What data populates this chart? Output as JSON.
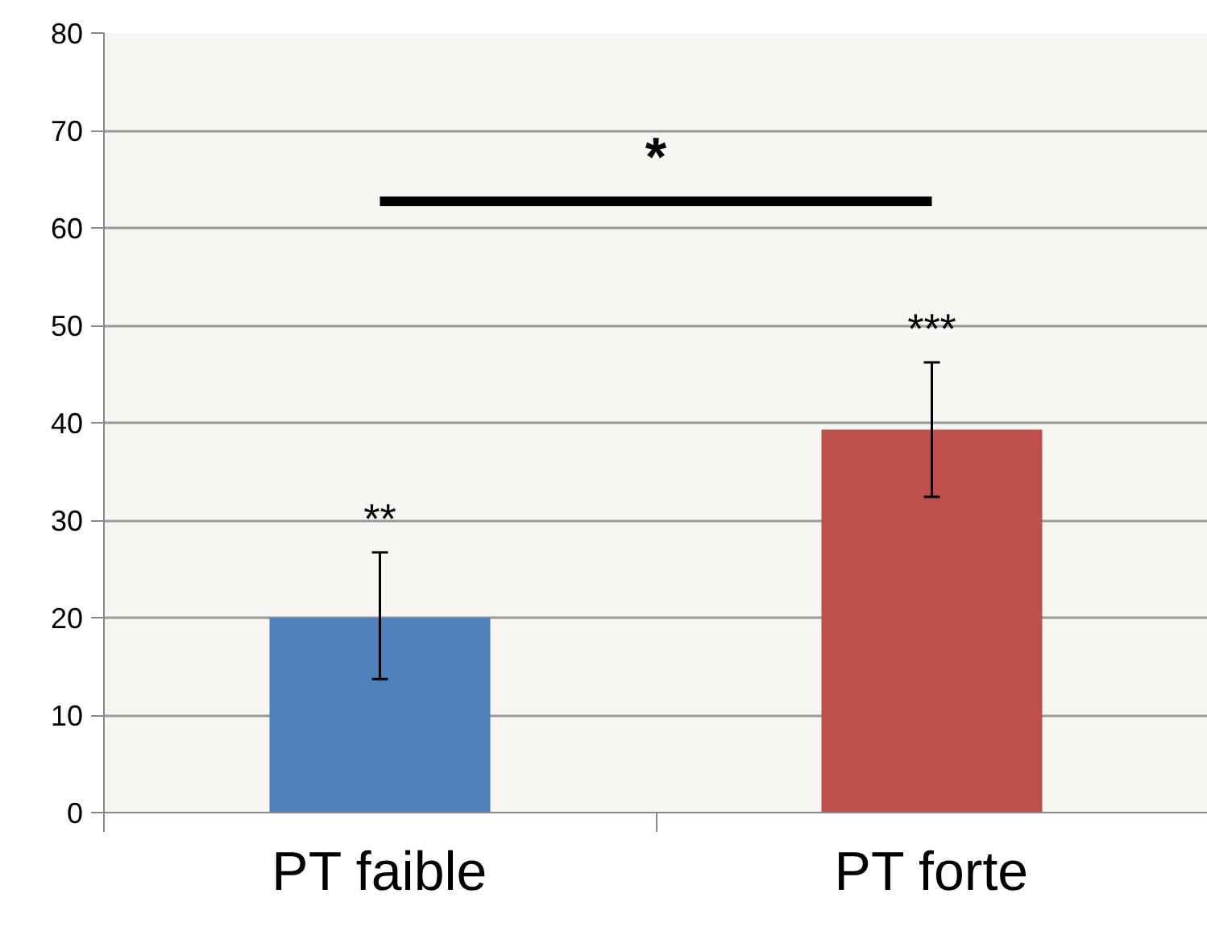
{
  "chart_data": {
    "type": "bar",
    "categories": [
      "PT faible",
      "PT forte"
    ],
    "values": [
      20.0,
      39.3
    ],
    "colors": [
      "#4f81bd",
      "#c0504d"
    ],
    "errors": [
      [
        13.7,
        26.7
      ],
      [
        32.4,
        46.2
      ]
    ],
    "ylim": [
      0,
      80
    ],
    "yticks": [
      0,
      10,
      20,
      30,
      40,
      50,
      60,
      70,
      80
    ],
    "grid": "y",
    "annotations": [
      "**",
      "***",
      "*"
    ]
  }
}
